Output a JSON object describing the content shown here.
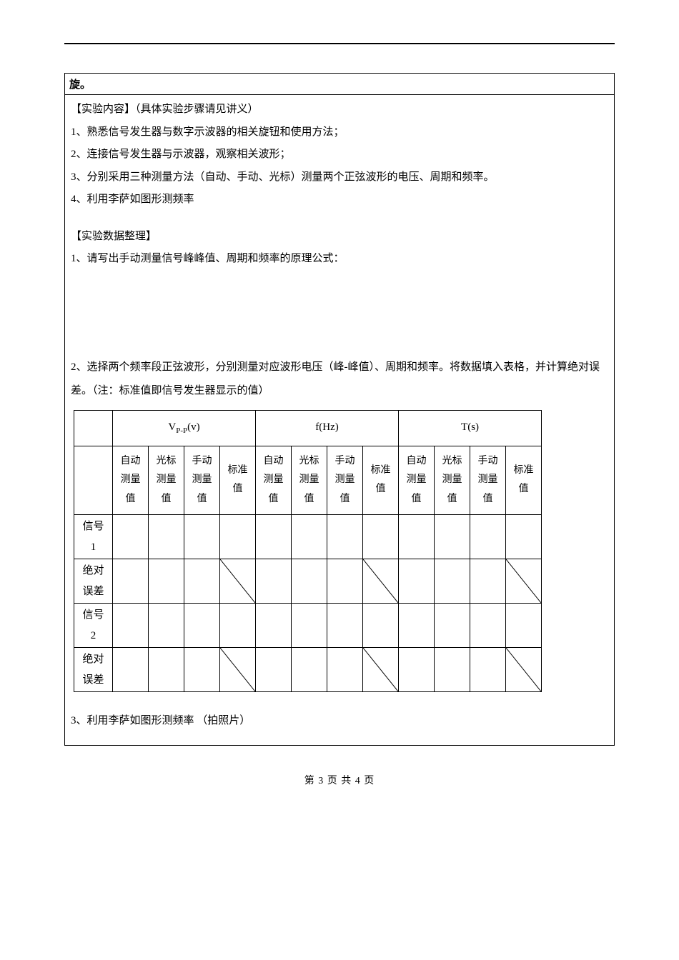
{
  "header_fragment": "旋。",
  "section_experiment_content": {
    "heading": "【实验内容】（具体实验步骤请见讲义）",
    "items": [
      "1、熟悉信号发生器与数字示波器的相关旋钮和使用方法；",
      "2、连接信号发生器与示波器，观察相关波形；",
      "3、分别采用三种测量方法（自动、手动、光标）测量两个正弦波形的电压、周期和频率。",
      "4、利用李萨如图形测频率"
    ]
  },
  "section_data": {
    "heading": "【实验数据整理】",
    "q1": "1、请写出手动测量信号峰峰值、周期和频率的原理公式：",
    "q2": "2、选择两个频率段正弦波形，分别测量对应波形电压（峰-峰值）、周期和频率。将数据填入表格，并计算绝对误差。（注：标准值即信号发生器显示的值）",
    "q3": "3、利用李萨如图形测频率  （拍照片）"
  },
  "table": {
    "group_headers": [
      "V",
      "f(Hz)",
      "T(s)"
    ],
    "vpp_sub": "P-P",
    "vpp_suffix": "(v)",
    "sub_headers": [
      "自动测量值",
      "光标测量值",
      "手动测量值",
      "标准值"
    ],
    "row_labels": [
      "信号1",
      "绝对误差",
      "信号2",
      "绝对误差"
    ],
    "diag_rows": [
      1,
      3
    ],
    "diag_cols": [
      3,
      7,
      11
    ]
  },
  "footer": "第 3 页 共 4 页",
  "colors": {
    "text": "#000000",
    "border": "#000000",
    "bg": "#ffffff"
  }
}
